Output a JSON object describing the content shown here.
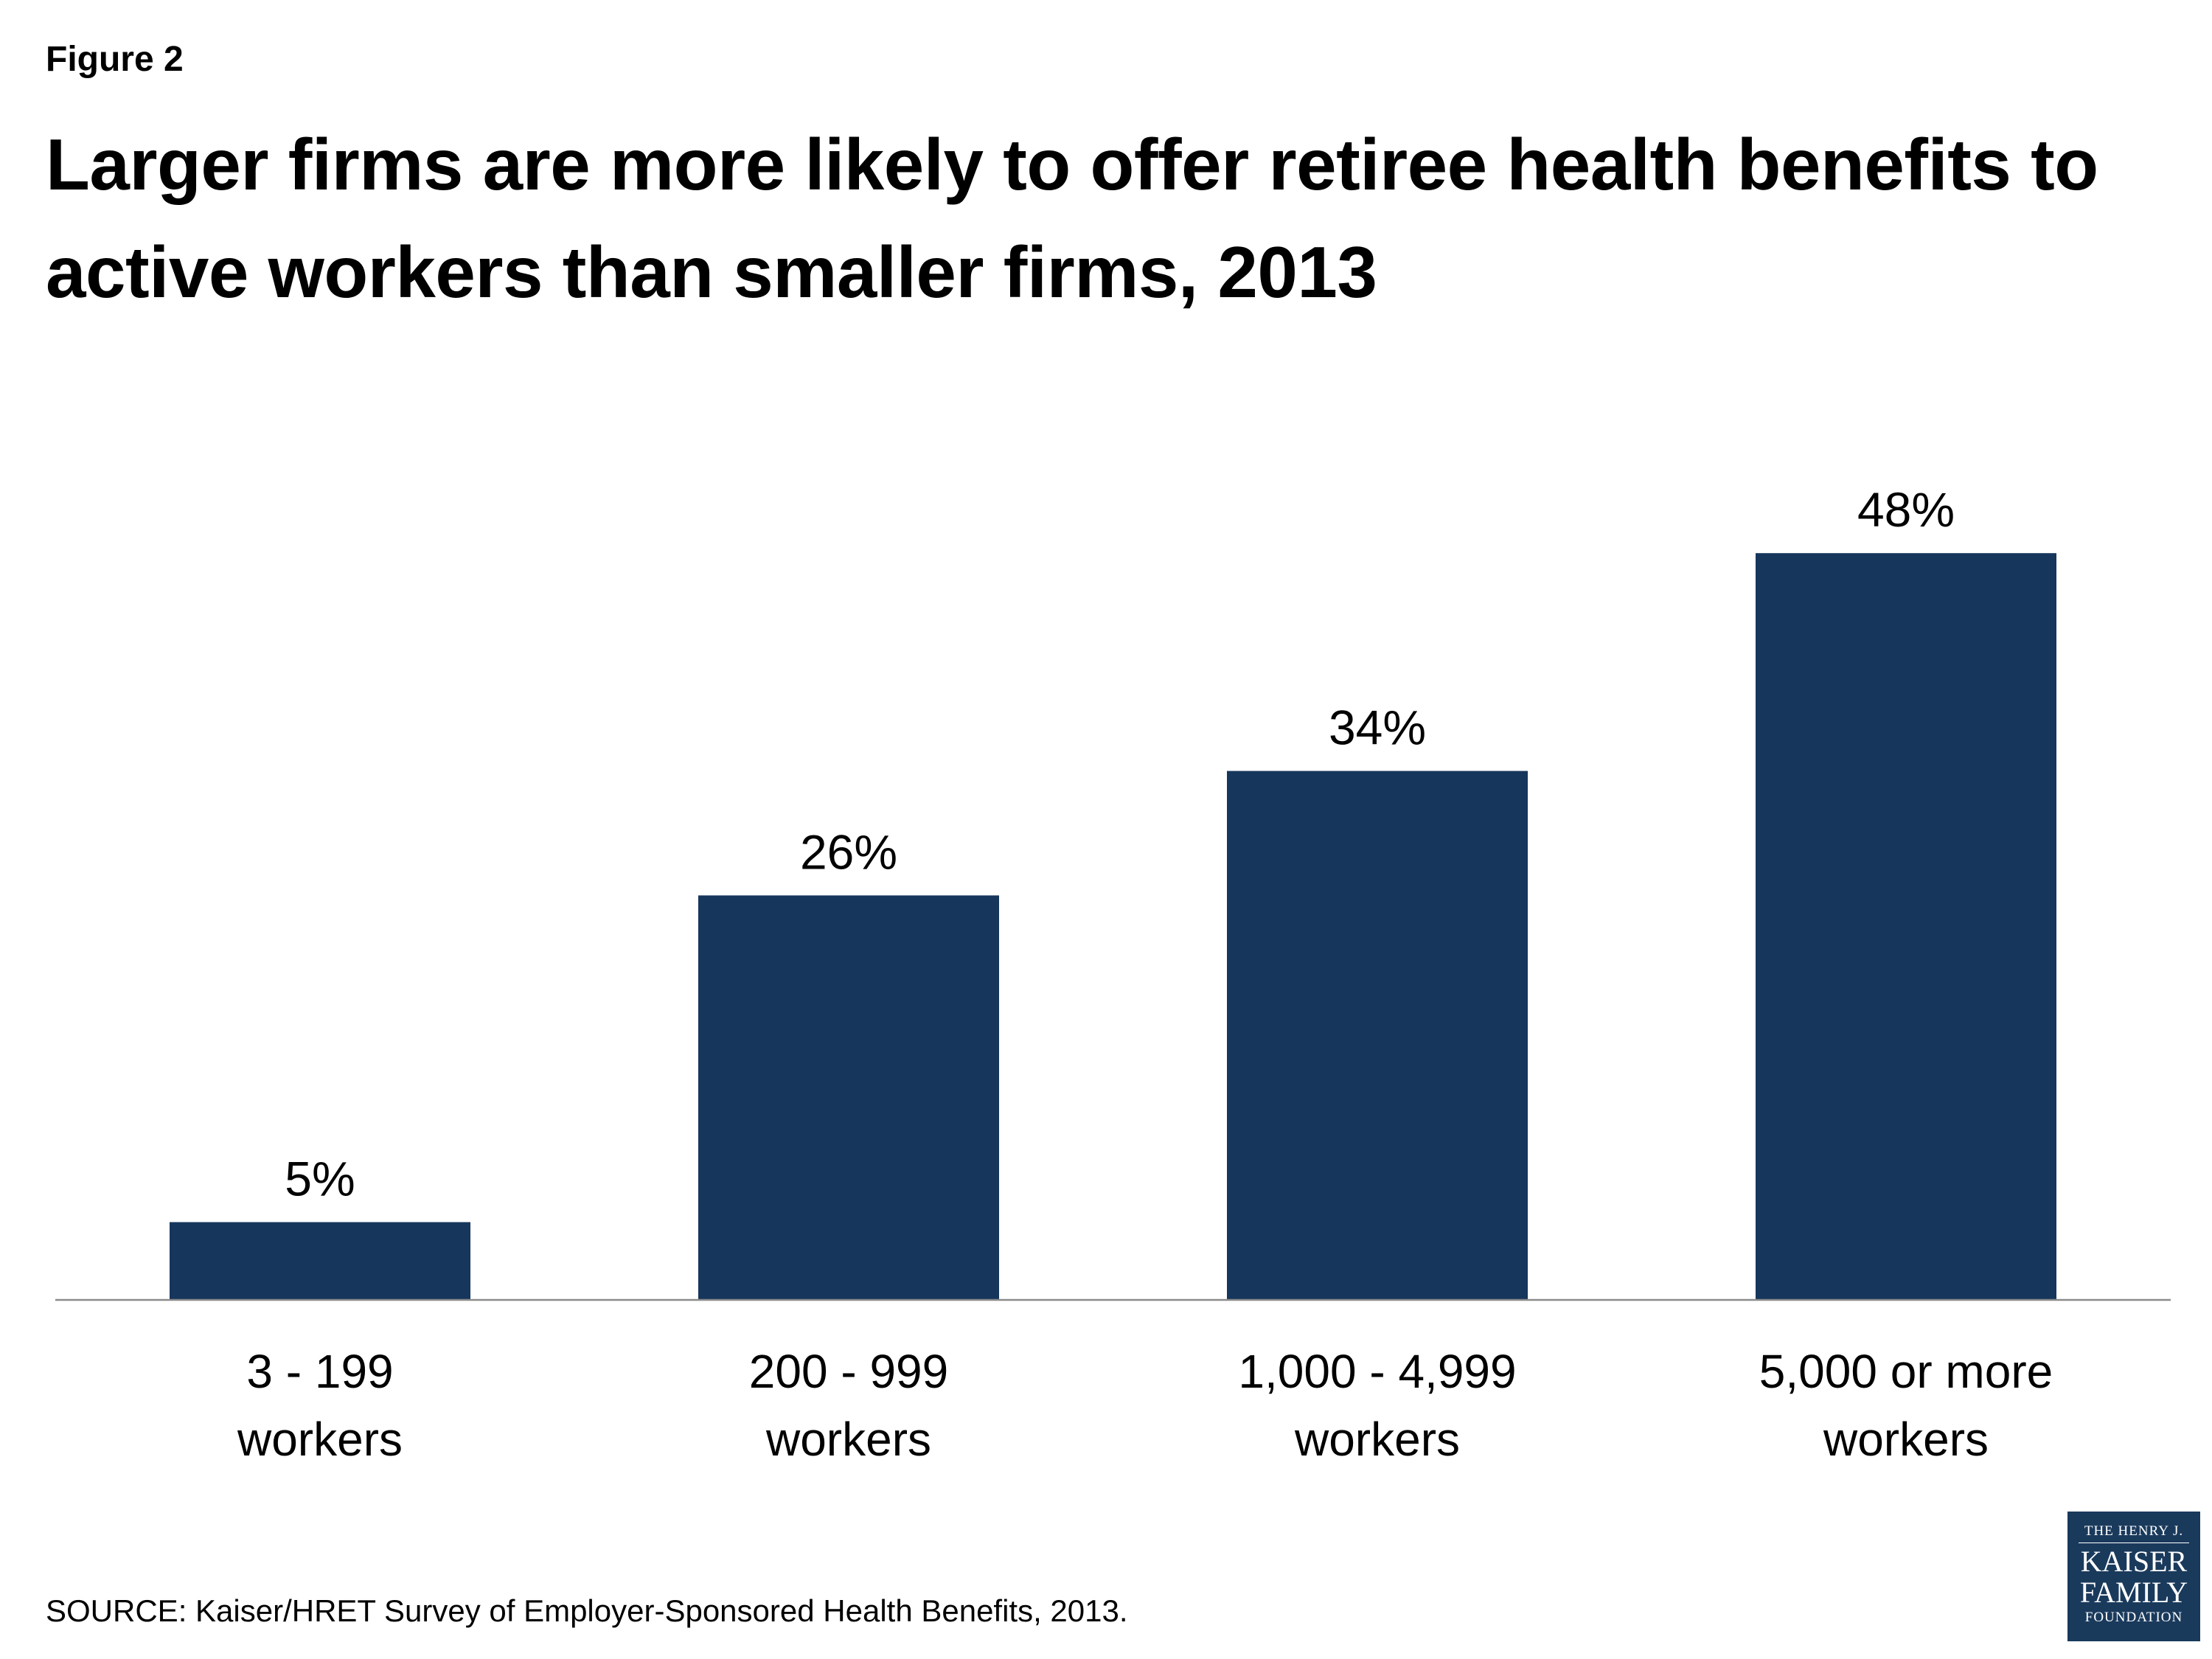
{
  "figure_label": "Figure 2",
  "chart_data": {
    "type": "bar",
    "title": "Larger firms are more likely to offer retiree health benefits to active workers than smaller firms, 2013",
    "categories": [
      [
        "3 - 199",
        "workers"
      ],
      [
        "200 - 999",
        "workers"
      ],
      [
        "1,000 - 4,999",
        "workers"
      ],
      [
        "5,000 or more",
        "workers"
      ]
    ],
    "values": [
      5,
      26,
      34,
      48
    ],
    "data_labels": [
      "5%",
      "26%",
      "34%",
      "48%"
    ],
    "xlabel": "",
    "ylabel": "",
    "ylim": [
      0,
      60
    ],
    "grid": false,
    "legend": "none",
    "bar_color": "#16365c",
    "axis_color": "#8c8c8c"
  },
  "source_note": "SOURCE: Kaiser/HRET Survey of Employer-Sponsored Health Benefits, 2013.",
  "logo": {
    "line1": "THE HENRY J.",
    "line2": "KAISER",
    "line3": "FAMILY",
    "line4": "FOUNDATION"
  }
}
